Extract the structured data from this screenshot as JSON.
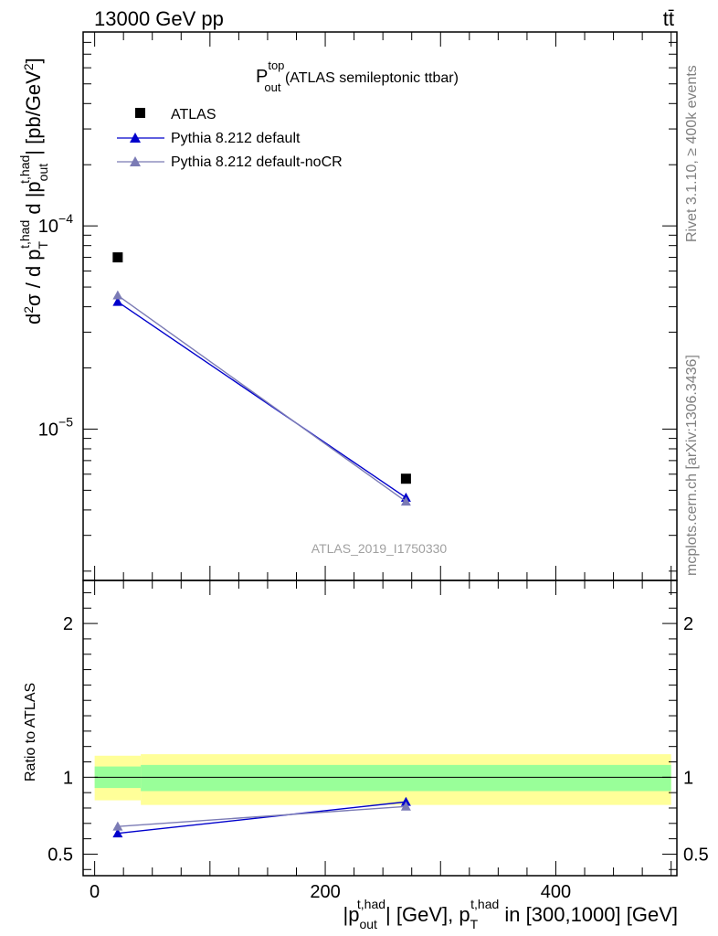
{
  "header": {
    "left": "13000 GeV pp",
    "right": "tt̄"
  },
  "side_labels": {
    "rivet": "Rivet 3.1.10, ≥ 400k events",
    "mcplots": "mcplots.cern.ch [arXiv:1306.3436]"
  },
  "plot_title": {
    "main": "P",
    "sup": "top",
    "sub": "out",
    "rest": " (ATLAS semileptonic ttbar)"
  },
  "analysis_id": "ATLAS_2019_I1750330",
  "colors": {
    "atlas": "#000000",
    "pythia_default": "#0000cc",
    "pythia_nocr": "#7b7bb5",
    "band_inner": "#99ff99",
    "band_outer": "#ffff99"
  },
  "legend": [
    {
      "label": "ATLAS",
      "marker": "square"
    },
    {
      "label": "Pythia 8.212 default",
      "marker": "triangle"
    },
    {
      "label": "Pythia 8.212 default-noCR",
      "marker": "triangle"
    }
  ],
  "axis_labels": {
    "upper_y": "d²σ / d p_T^t,had d |p_out^t,had| [pb/GeV²]",
    "lower_y": "Ratio to ATLAS",
    "x": "|p_out^t,had| [GeV], p_T^t,had in [300,1000] [GeV]"
  },
  "chart_data": [
    {
      "type": "scatter",
      "panel": "main",
      "yscale": "log",
      "xlim": [
        -10,
        505
      ],
      "ylim": [
        1.8e-06,
        0.0009
      ],
      "yticks": [
        {
          "value": 0.0001,
          "label": "10",
          "exp": "−4"
        },
        {
          "value": 1e-05,
          "label": "10",
          "exp": "−5"
        }
      ],
      "series": [
        {
          "name": "ATLAS",
          "points": [
            {
              "x": 20,
              "y": 7e-05
            },
            {
              "x": 270,
              "y": 5.7e-06
            }
          ]
        },
        {
          "name": "Pythia 8.212 default",
          "points": [
            {
              "x": 20,
              "y": 4.23e-05
            },
            {
              "x": 270,
              "y": 4.6e-06
            }
          ]
        },
        {
          "name": "Pythia 8.212 default-noCR",
          "points": [
            {
              "x": 20,
              "y": 4.55e-05
            },
            {
              "x": 270,
              "y": 4.4e-06
            }
          ]
        }
      ]
    },
    {
      "type": "line",
      "panel": "ratio",
      "xlim": [
        -10,
        505
      ],
      "ylim": [
        0.36,
        2.28
      ],
      "yticks": [
        {
          "value": 0.5,
          "label": "0.5"
        },
        {
          "value": 1,
          "label": "1"
        },
        {
          "value": 2,
          "label": "2"
        }
      ],
      "xticks": [
        {
          "value": 0,
          "label": "0"
        },
        {
          "value": 200,
          "label": "200"
        },
        {
          "value": 400,
          "label": "400"
        }
      ],
      "bands": [
        {
          "x0": 0,
          "x1": 40,
          "inner": [
            0.93,
            1.07
          ],
          "outer": [
            0.85,
            1.14
          ]
        },
        {
          "x0": 40,
          "x1": 500,
          "inner": [
            0.91,
            1.08
          ],
          "outer": [
            0.82,
            1.15
          ]
        }
      ],
      "series": [
        {
          "name": "Pythia 8.212 default",
          "points": [
            {
              "x": 20,
              "y": 0.635,
              "err": 0.018
            },
            {
              "x": 270,
              "y": 0.84,
              "err": 0.025
            }
          ]
        },
        {
          "name": "Pythia 8.212 default-noCR",
          "points": [
            {
              "x": 20,
              "y": 0.68,
              "err": 0.018
            },
            {
              "x": 270,
              "y": 0.81,
              "err": 0.015
            }
          ]
        }
      ]
    }
  ]
}
